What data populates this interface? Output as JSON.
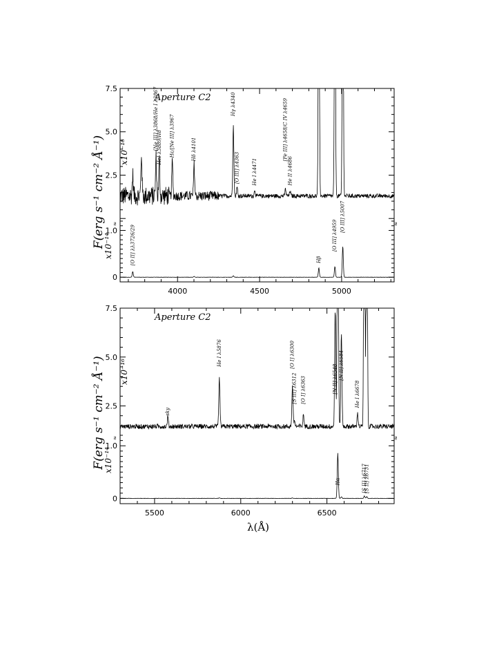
{
  "figure": {
    "xlabel": "λ(Å)",
    "ylabel": "F(erg s⁻¹ cm⁻² Å⁻¹)",
    "scale_upper": "x10⁻¹⁶",
    "scale_lower": "x10⁻¹⁴",
    "break_mark": "≈"
  },
  "chart_data": [
    {
      "type": "line",
      "panel": "top",
      "title": "Aperture C2",
      "xlabel": "",
      "ylabel": "F(erg s⁻¹ cm⁻² Å⁻¹)",
      "xlim": [
        3650,
        5320
      ],
      "x_ticks": [
        4000,
        4500,
        5000
      ],
      "x_tick_labels": [
        "4000",
        "4500",
        "5000"
      ],
      "upper_axis": {
        "scale": "x10⁻¹⁶",
        "ylim": [
          -0.15,
          7.5
        ],
        "ticks": [
          "2.5",
          "5.0",
          "7.5"
        ]
      },
      "lower_axis": {
        "scale": "x10⁻¹⁴",
        "ylim": [
          -0.1,
          1.2
        ],
        "ticks": [
          "0",
          "1.0"
        ]
      },
      "series": [
        {
          "continuum": 1.3,
          "lines_upper": [
            [
              3727,
              1.2
            ],
            [
              3727.1,
              0
            ],
            [
              3780,
              2.4
            ],
            [
              3869,
              2.2
            ],
            [
              3889,
              2.0
            ],
            [
              3968,
              2.0
            ],
            [
              4101,
              1.8
            ],
            [
              4340,
              4.2
            ],
            [
              4363,
              0.5
            ],
            [
              4471,
              0.35
            ],
            [
              4658,
              0.4
            ],
            [
              4686,
              0.3
            ],
            [
              4861,
              20
            ],
            [
              4959,
              20
            ],
            [
              5007,
              20
            ]
          ],
          "lines_lower": [
            [
              3727,
              0.12
            ],
            [
              4101,
              0.02
            ],
            [
              4340,
              0.03
            ],
            [
              4861,
              0.2
            ],
            [
              4959,
              0.23
            ],
            [
              5007,
              0.66
            ]
          ]
        }
      ],
      "line_labels": [
        {
          "text": "[O II] λλ3726/29",
          "x": 3727,
          "axis": "lower",
          "y": 0.25
        },
        {
          "text": "[Ne III] λ3868/He I λ3867",
          "x": 3869,
          "axis": "upper",
          "y": 3.9
        },
        {
          "text": "HeI λ3889/H8",
          "x": 3889,
          "axis": "upper",
          "y": 3.1
        },
        {
          "text": "Hε/[Ne III] λ3967",
          "x": 3968,
          "axis": "upper",
          "y": 3.5
        },
        {
          "text": "Hδ λ4101",
          "x": 4101,
          "axis": "upper",
          "y": 3.3
        },
        {
          "text": "Hγ λ4340",
          "x": 4340,
          "axis": "upper",
          "y": 5.9
        },
        {
          "text": "[O III] λ4363",
          "x": 4363,
          "axis": "upper",
          "y": 2.0
        },
        {
          "text": "He I λ4471",
          "x": 4471,
          "axis": "upper",
          "y": 1.9
        },
        {
          "text": "[Fe III] λ4658/C IV λ4659",
          "x": 4658,
          "axis": "upper",
          "y": 3.3
        },
        {
          "text": "He II λ4686",
          "x": 4686,
          "axis": "upper",
          "y": 1.9
        },
        {
          "text": "Hβ",
          "x": 4861,
          "axis": "lower",
          "y": 0.3
        },
        {
          "text": "[O III] λ4959",
          "x": 4959,
          "axis": "lower",
          "y": 0.55
        },
        {
          "text": "[O III] λ5007",
          "x": 5007,
          "axis": "lower",
          "y": 0.95
        }
      ]
    },
    {
      "type": "line",
      "panel": "bottom",
      "title": "Aperture C2",
      "xlabel": "λ(Å)",
      "ylabel": "F(erg s⁻¹ cm⁻² Å⁻¹)",
      "xlim": [
        5300,
        6890
      ],
      "x_ticks": [
        5500,
        6000,
        6500
      ],
      "x_tick_labels": [
        "5500",
        "6000",
        "6500"
      ],
      "upper_axis": {
        "scale": "x10⁻¹⁶",
        "ylim": [
          1.0,
          7.5
        ],
        "ticks": [
          "2.5",
          "5.0",
          "7.5"
        ]
      },
      "lower_axis": {
        "scale": "x10⁻¹⁴",
        "ylim": [
          -0.1,
          1.2
        ],
        "ticks": [
          "0",
          "1.0"
        ]
      },
      "series": [
        {
          "continuum": 1.45,
          "lines_upper": [
            [
              5577,
              0.5
            ],
            [
              5876,
              2.5
            ],
            [
              6300,
              2.1
            ],
            [
              6312,
              0.3
            ],
            [
              6364,
              0.6
            ],
            [
              6548,
              6
            ],
            [
              6563,
              20
            ],
            [
              6584,
              4.8
            ],
            [
              6678,
              0.7
            ],
            [
              6717,
              20
            ],
            [
              6731,
              20
            ]
          ],
          "lines_lower": [
            [
              5876,
              0.01
            ],
            [
              6300,
              0.01
            ],
            [
              6563,
              0.86
            ],
            [
              6584,
              0.03
            ],
            [
              6717,
              0.045
            ],
            [
              6731,
              0.035
            ]
          ]
        }
      ],
      "line_labels": [
        {
          "text": "sky",
          "x": 5577,
          "axis": "upper",
          "y": 2.0
        },
        {
          "text": "He I λ5876",
          "x": 5876,
          "axis": "upper",
          "y": 4.5
        },
        {
          "text": "[O I] λ6300",
          "x": 6300,
          "axis": "upper",
          "y": 4.4
        },
        {
          "text": "[S III] λ6312",
          "x": 6312,
          "axis": "upper",
          "y": 2.6
        },
        {
          "text": "[O I] λ6363",
          "x": 6364,
          "axis": "upper",
          "y": 2.6
        },
        {
          "text": "[N II] λ6548",
          "x": 6548,
          "axis": "upper",
          "y": 3.1
        },
        {
          "text": "[N II] λ6584",
          "x": 6584,
          "axis": "upper",
          "y": 3.8
        },
        {
          "text": "He I λ6678",
          "x": 6678,
          "axis": "upper",
          "y": 2.4
        },
        {
          "text": "Hα",
          "x": 6563,
          "axis": "lower",
          "y": 0.25
        },
        {
          "text": "[S II] λ6717",
          "x": 6717,
          "axis": "lower",
          "y": 0.1
        },
        {
          "text": "[S II] λ6731",
          "x": 6731,
          "axis": "lower",
          "y": 0.1
        }
      ]
    }
  ]
}
